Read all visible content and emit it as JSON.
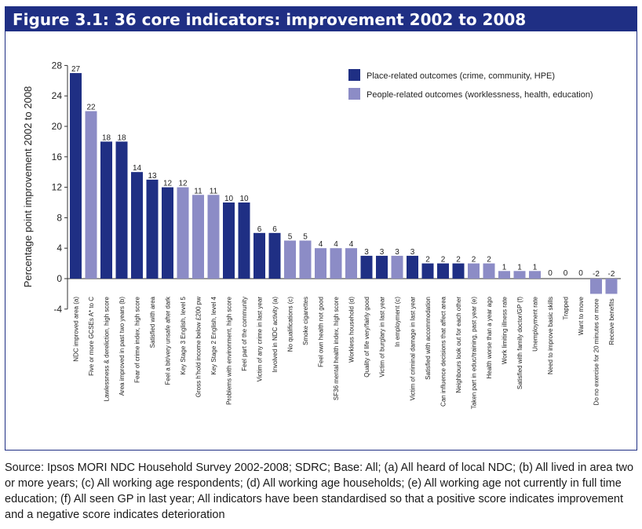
{
  "title": "Figure 3.1: 36 core indicators: improvement 2002 to 2008",
  "source_note": "Source: Ipsos MORI NDC Household Survey 2002-2008; SDRC; Base: All; (a) All heard of local NDC; (b) All lived in area two or more years; (c) All working age respondents; (d) All working age households; (e) All working age not currently in full time education; (f) All seen GP in last year; All indicators have been standardised so that a positive score indicates improvement and a negative score indicates deterioration",
  "colors": {
    "header": "#1f2f84",
    "place": "#1f2f84",
    "people": "#8c8cc6"
  },
  "chart_data": {
    "type": "bar",
    "ylabel": "Percentage point improvement 2002 to 2008",
    "ylim": [
      -4,
      28
    ],
    "yticks": [
      -4,
      0,
      4,
      8,
      12,
      16,
      20,
      24,
      28
    ],
    "legend": {
      "placement": "top-right",
      "entries": [
        {
          "name": "Place-related outcomes (crime, community, HPE)",
          "color": "#1f2f84"
        },
        {
          "name": "People-related outcomes (worklessness, health, education)",
          "color": "#8c8cc6"
        }
      ]
    },
    "categories": [
      "NDC improved area (a)",
      "Five or more GCSEs A* to C",
      "Lawlessness & dereliction, high score",
      "Area improved in past two years (b)",
      "Fear of crime index, high score",
      "Satisfied with area",
      "Feel a bit/very unsafe after dark",
      "Key Stage 3 English, level 5",
      "Gross h'hold income below £200 pw",
      "Key Stage 2 English, level 4",
      "Problems with environment, high score",
      "Feel part of the community",
      "Victim of any crime in last year",
      "Involved in NDC activity (a)",
      "No qualifications (c)",
      "Smoke cigarettes",
      "Feel own health not good",
      "SF36 mental health index, high score",
      "Workless household (d)",
      "Quality of life very/fairly good",
      "Victim of burglary in last year",
      "In employment (c)",
      "Victim of criminal damage in last year",
      "Satisfied with accommodation",
      "Can influence decisions that affect area",
      "Neighbours look out for each other",
      "Taken part in educ/training, past year (e)",
      "Health worse than a year ago",
      "Work limiting illness rate",
      "Satisfied with family doctor/GP (f)",
      "Unemployment rate",
      "Need to improve basic skills",
      "Trapped",
      "Want to move",
      "Do no exercise for 20 minutes or more",
      "Receive benefits"
    ],
    "values": [
      27,
      22,
      18,
      18,
      14,
      13,
      12,
      12,
      11,
      11,
      10,
      10,
      6,
      6,
      5,
      5,
      4,
      4,
      4,
      3,
      3,
      3,
      3,
      2,
      2,
      2,
      2,
      2,
      1,
      1,
      1,
      0,
      0,
      0,
      -2,
      -2
    ],
    "groups": [
      "place",
      "people",
      "place",
      "place",
      "place",
      "place",
      "place",
      "people",
      "people",
      "people",
      "place",
      "place",
      "place",
      "place",
      "people",
      "people",
      "people",
      "people",
      "people",
      "place",
      "place",
      "people",
      "place",
      "place",
      "place",
      "place",
      "people",
      "people",
      "people",
      "people",
      "people",
      "people",
      "place",
      "place",
      "people",
      "people"
    ]
  }
}
